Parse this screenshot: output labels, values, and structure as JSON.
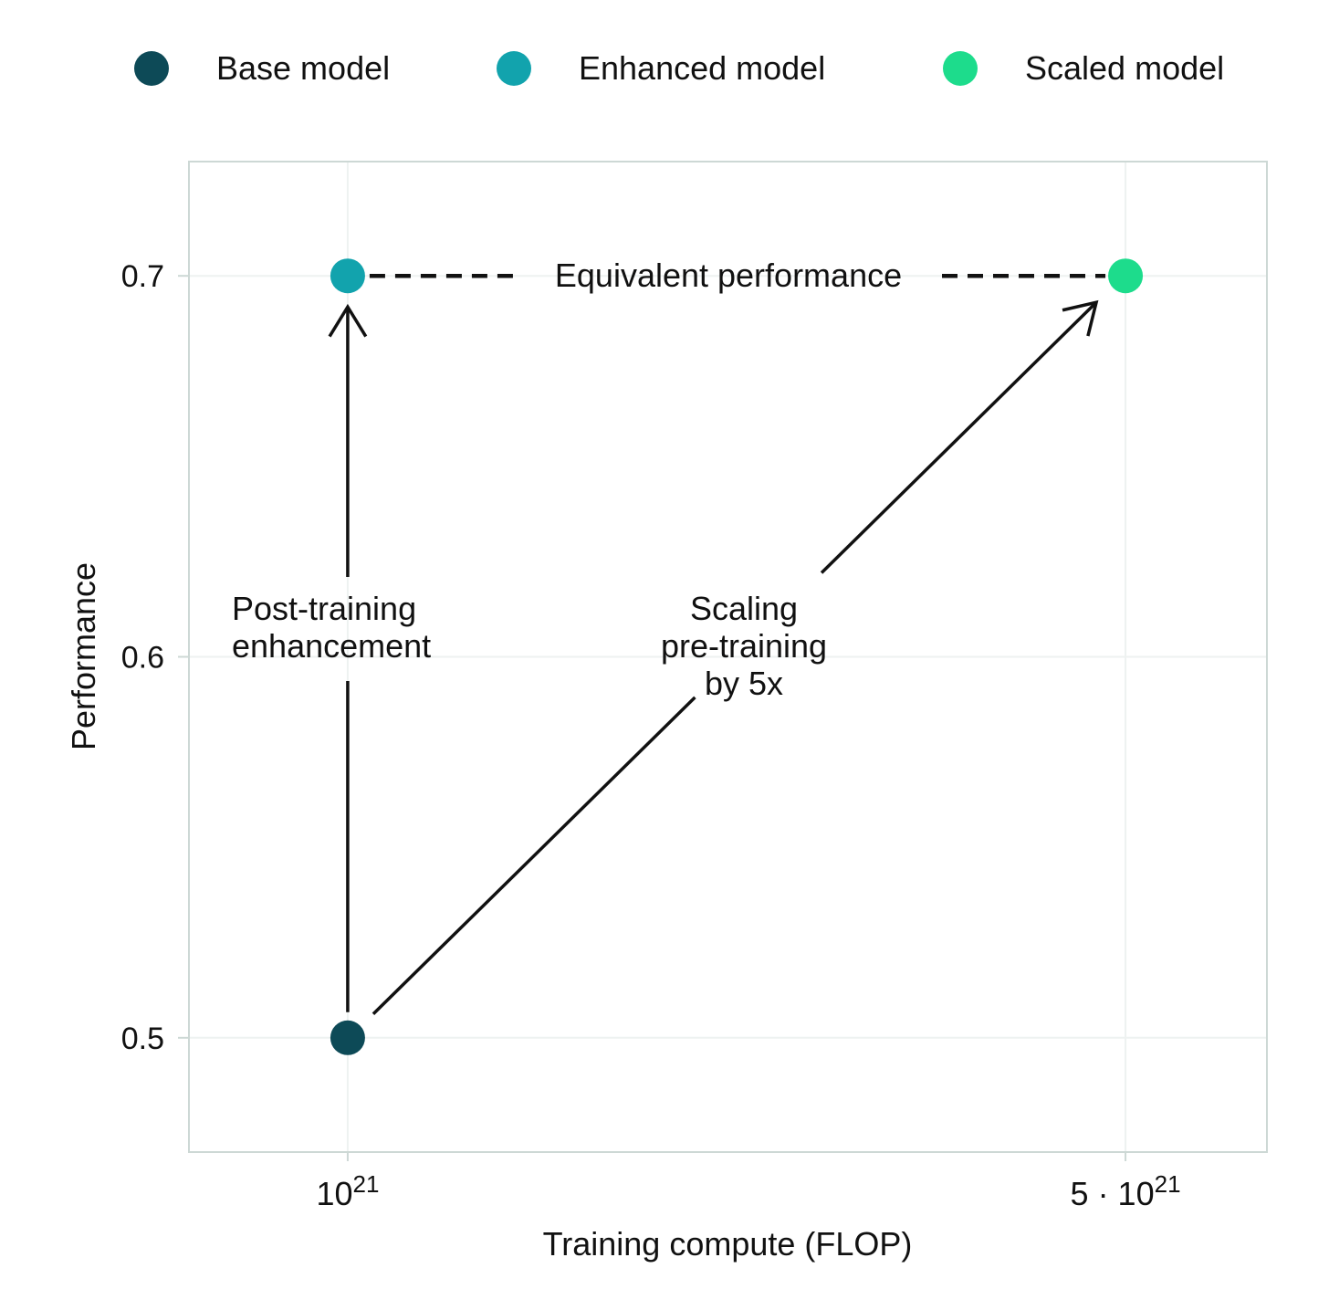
{
  "chart_data": {
    "type": "scatter",
    "title": "",
    "xlabel": "Training compute (FLOP)",
    "ylabel": "Performance",
    "x_scale": "log",
    "xlim": [
      7.2e+20,
      6.7e+21
    ],
    "ylim": [
      0.47,
      0.73
    ],
    "grid": true,
    "legend_position": "top",
    "x_ticks": [
      {
        "value": 1e+21,
        "base": "10",
        "exp": "21"
      },
      {
        "value": 5e+21,
        "base": "5 · 10",
        "exp": "21"
      }
    ],
    "y_ticks": [
      {
        "value": 0.5,
        "label": "0.5"
      },
      {
        "value": 0.6,
        "label": "0.6"
      },
      {
        "value": 0.7,
        "label": "0.7"
      }
    ],
    "series": [
      {
        "name": "Base model",
        "color": "#0d4a57",
        "x": 1e+21,
        "y": 0.5
      },
      {
        "name": "Enhanced model",
        "color": "#12a3ad",
        "x": 1e+21,
        "y": 0.7
      },
      {
        "name": "Scaled model",
        "color": "#1ddc8c",
        "x": 5e+21,
        "y": 0.7
      }
    ],
    "annotations": [
      {
        "id": "equivalent",
        "lines": [
          "Equivalent performance"
        ]
      },
      {
        "id": "post-training",
        "lines": [
          "Post-training",
          "enhancement"
        ]
      },
      {
        "id": "scaling",
        "lines": [
          "Scaling",
          "pre-training",
          "by 5x"
        ]
      }
    ]
  },
  "colors": {
    "frame": "#cdd8d5",
    "grid": "#eef2f1",
    "ink": "#111111"
  }
}
